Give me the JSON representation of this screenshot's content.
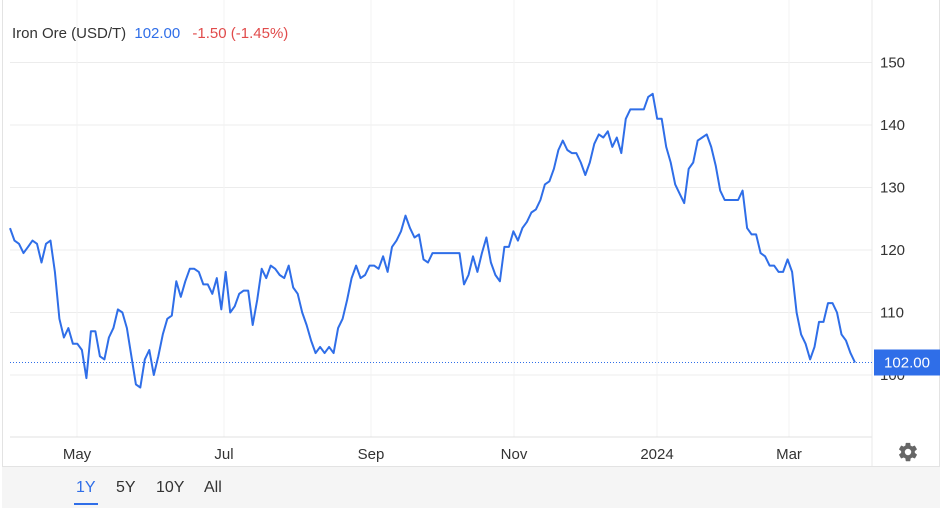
{
  "header": {
    "name": "Iron Ore (USD/T)",
    "price": "102.00",
    "change": "-1.50 (-1.45%)"
  },
  "last_value_label": "102.00",
  "range_buttons": [
    {
      "label": "1Y",
      "active": true
    },
    {
      "label": "5Y",
      "active": false
    },
    {
      "label": "10Y",
      "active": false
    },
    {
      "label": "All",
      "active": false
    }
  ],
  "colors": {
    "line": "#2f6ee8",
    "grid": "#ececec",
    "axis_text": "#333333",
    "up_label_bg": "#2f6ee8",
    "negative": "#e14b4b"
  },
  "icons": {
    "settings": "gear-icon"
  },
  "chart_data": {
    "type": "line",
    "title": "Iron Ore (USD/T)",
    "xlabel": "",
    "ylabel": "",
    "ylim": [
      90,
      155
    ],
    "y_ticks": [
      100,
      110,
      120,
      130,
      140,
      150
    ],
    "x_ticks": [
      "May",
      "Jul",
      "Sep",
      "Nov",
      "2024",
      "Mar"
    ],
    "grid": true,
    "last_value": 102.0,
    "series": [
      {
        "name": "Iron Ore (USD/T)",
        "values": [
          123.5,
          121.5,
          121,
          119.5,
          120.5,
          121.5,
          121,
          118,
          121,
          121.5,
          116.5,
          109,
          106,
          107.5,
          105,
          105,
          104,
          99.5,
          107,
          107,
          103,
          102.5,
          106,
          107.5,
          110.5,
          110,
          107.5,
          103,
          98.5,
          98,
          102.5,
          104,
          100,
          103,
          106.5,
          109,
          109.5,
          115,
          112.5,
          115,
          117,
          117,
          116.5,
          114.5,
          114.5,
          113,
          115.5,
          110.5,
          116.5,
          110,
          111,
          113,
          113.5,
          113.5,
          108,
          112,
          117,
          115.5,
          117.5,
          117,
          116,
          115.5,
          117.5,
          114,
          113,
          110,
          108,
          105.5,
          103.5,
          104.5,
          103.5,
          104.5,
          103.5,
          107.5,
          109,
          112,
          115.5,
          117.5,
          115.5,
          116,
          117.5,
          117.5,
          117,
          119,
          116.5,
          120.5,
          121.5,
          123,
          125.5,
          123.5,
          122,
          122.5,
          118.5,
          118,
          119.5,
          119.5,
          119.5,
          119.5,
          119.5,
          119.5,
          119.5,
          114.5,
          116,
          119,
          116.5,
          119.5,
          122,
          118,
          116,
          115,
          120.5,
          120.5,
          123,
          121.5,
          123.5,
          124.5,
          126,
          126.5,
          128,
          130.5,
          131,
          133,
          136,
          137.5,
          136,
          135.5,
          135.5,
          134,
          132,
          134,
          137,
          138.5,
          138,
          139,
          136.5,
          138,
          135.5,
          141,
          142.5,
          142.5,
          142.5,
          142.5,
          144.5,
          145,
          141,
          141,
          136.5,
          134,
          130.5,
          129,
          127.5,
          133,
          134,
          137.5,
          138,
          138.5,
          136.5,
          133.5,
          129.5,
          128,
          128,
          128,
          128,
          129.5,
          123.5,
          122.5,
          122.5,
          119.5,
          119,
          117.5,
          117.5,
          116.5,
          116.5,
          118.5,
          116.5,
          110,
          106.5,
          105,
          102.5,
          104.5,
          108.5,
          108.5,
          111.5,
          111.5,
          110,
          106.5,
          105.5,
          103.5,
          102
        ]
      }
    ]
  }
}
